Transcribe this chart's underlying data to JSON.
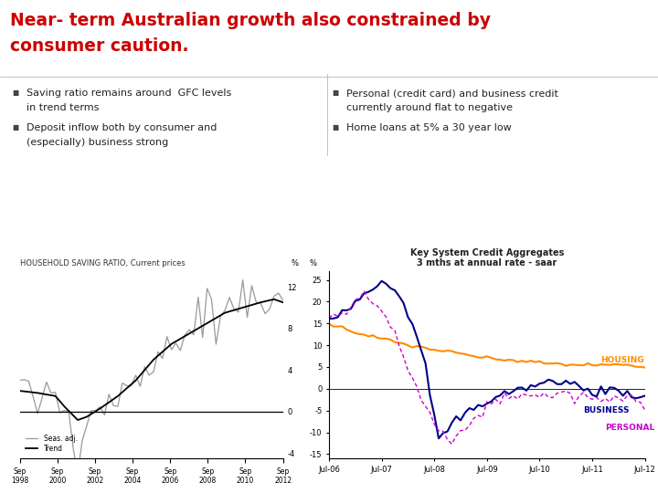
{
  "title_line1": "Near- term Australian growth also constrained by",
  "title_line2": "consumer caution.",
  "title_color": "#CC0000",
  "bg_color": "#FFFFFF",
  "bullet_color": "#222222",
  "bullet_marker_color": "#444444",
  "bullets_left": [
    [
      "Saving ratio remains around  GFC levels",
      "in trend terms"
    ],
    [
      "Deposit inflow both by consumer and",
      "(especially) business strong"
    ]
  ],
  "bullets_right": [
    [
      "Personal (credit card) and business credit",
      "currently around flat to negative"
    ],
    [
      "Home loans at 5% a 30 year low"
    ]
  ],
  "chart1_title": "HOUSEHOLD SAVING RATIO, Current prices",
  "chart1_pct_label": "%",
  "chart1_ytick_vals": [
    -4,
    0,
    4,
    8,
    12
  ],
  "chart1_ytick_labels": [
    "-4",
    "0",
    "4",
    "8",
    "12"
  ],
  "chart1_xtick_labels": [
    "Sep\n1998",
    "Sep\n2000",
    "Sep\n2002",
    "Sep\n2004",
    "Sep\n2006",
    "Sep\n2008",
    "Sep\n2010",
    "Sep\n2012"
  ],
  "chart1_legend": [
    "Trend",
    "Seas. adj."
  ],
  "chart1_trend_color": "#000000",
  "chart1_seas_color": "#999999",
  "chart2_title_line1": "Key System Credit Aggregates",
  "chart2_title_line2": "3 mths at annual rate - saar",
  "chart2_pct_label": "%",
  "chart2_ytick_vals": [
    -15,
    -10,
    -5,
    0,
    5,
    10,
    15,
    20,
    25
  ],
  "chart2_xtick_labels": [
    "Jul-06",
    "Jul-07",
    "Jul-08",
    "Jul-09",
    "Jul-10",
    "Jul-11",
    "Jul-12"
  ],
  "chart2_labels": [
    "HOUSING",
    "BUSINESS",
    "PERSONAL"
  ],
  "chart2_housing_color": "#FF8C00",
  "chart2_business_color": "#00008B",
  "chart2_personal_color": "#CC00CC",
  "divider_color": "#AAAAAA"
}
